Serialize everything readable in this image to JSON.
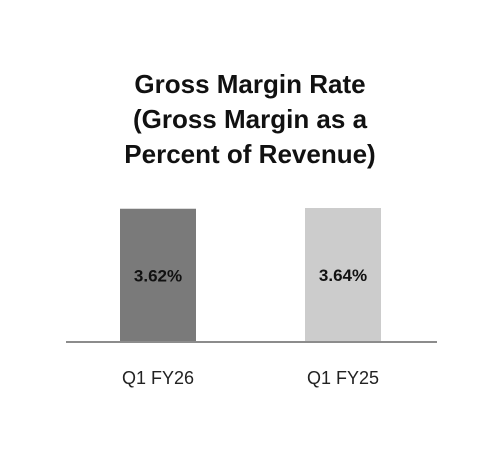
{
  "chart_data": {
    "type": "bar",
    "title": [
      "Gross Margin Rate",
      "(Gross Margin as a",
      "Percent of Revenue)"
    ],
    "categories": [
      "Q1 FY26",
      "Q1 FY25"
    ],
    "values": [
      3.62,
      3.64
    ],
    "value_labels": [
      "3.62%",
      "3.64%"
    ],
    "bar_colors": [
      "#7a7a7a",
      "#cccccc"
    ],
    "axis_color": "#8c8c8c",
    "xlabel": "",
    "ylabel": "",
    "grid": false,
    "legend": "none"
  }
}
